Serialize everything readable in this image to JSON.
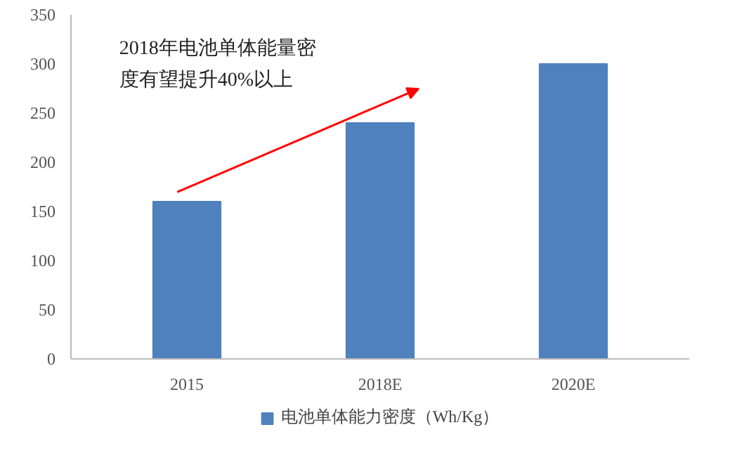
{
  "chart_data": {
    "type": "bar",
    "categories": [
      "2015",
      "2018E",
      "2020E"
    ],
    "series": [
      {
        "name": "电池单体能力密度（Wh/Kg）",
        "color": "#4f81bd",
        "values": [
          160,
          240,
          300
        ]
      }
    ],
    "ylim": [
      0,
      350
    ],
    "yticks": [
      0,
      50,
      100,
      150,
      200,
      250,
      300,
      350
    ],
    "grid": false,
    "legend": "bottom",
    "annotations": [
      "2018年电池单体能量密度有望提升40%以上"
    ]
  }
}
